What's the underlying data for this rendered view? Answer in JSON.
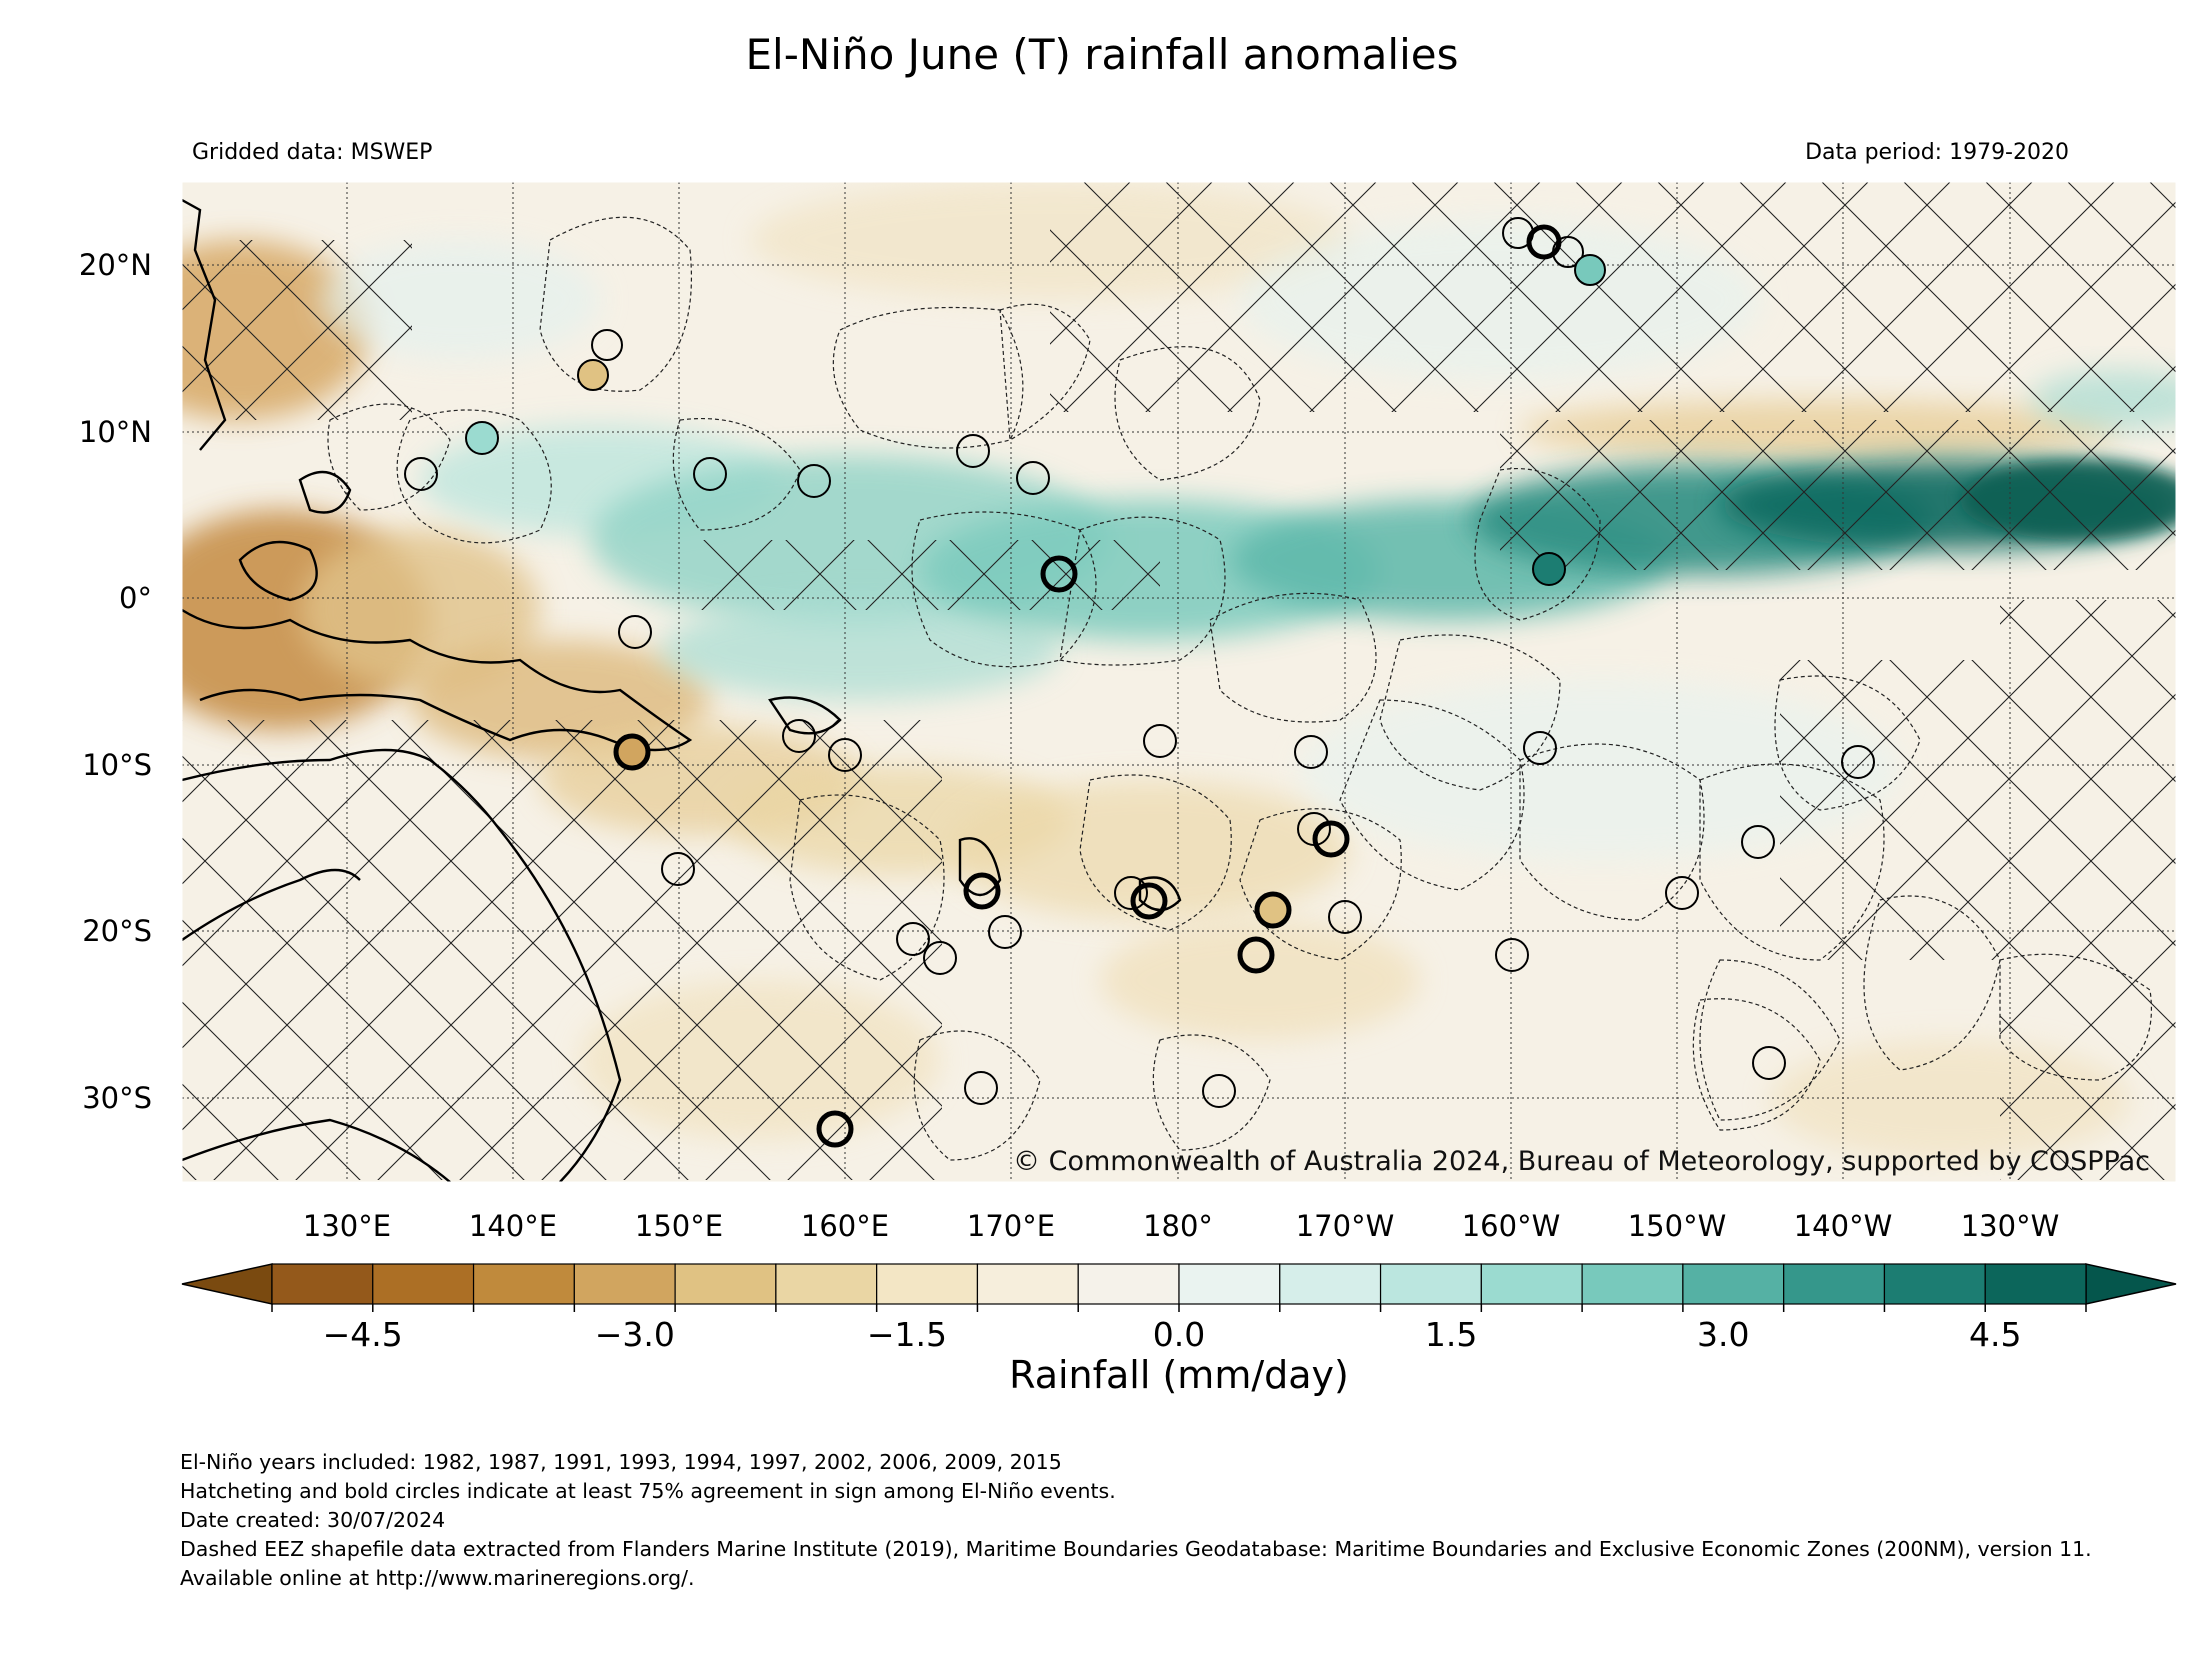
{
  "title": "El-Niño June (T) rainfall anomalies",
  "notes": {
    "left": "Gridded data: MSWEP",
    "right": "Data period: 1979-2020",
    "copyright": "© Commonwealth of Australia 2024, Bureau of Meteorology, supported by COSPPac"
  },
  "map": {
    "lon_labels": [
      "130°E",
      "140°E",
      "150°E",
      "160°E",
      "170°E",
      "180°",
      "170°W",
      "160°W",
      "150°W",
      "140°W",
      "130°W"
    ],
    "lat_labels": [
      "20°N",
      "10°N",
      "0°",
      "10°S",
      "20°S",
      "30°S"
    ],
    "lon_range": [
      120,
      240
    ],
    "lat_range": [
      -35,
      25
    ],
    "hatching": "Hatcheting and bold circles indicate at least 75% agreement in sign among El-Niño events."
  },
  "colorbar": {
    "label": "Rainfall (mm/day)",
    "tick_labels": [
      "−4.5",
      "−3.0",
      "−1.5",
      "0.0",
      "1.5",
      "3.0",
      "4.5"
    ],
    "ticks": [
      -4.5,
      -3.0,
      -1.5,
      0.0,
      1.5,
      3.0,
      4.5
    ],
    "range": [
      -5.25,
      5.25
    ],
    "extend": "both",
    "colors": [
      "#7a4a10",
      "#94591b",
      "#ac6f25",
      "#c08a3c",
      "#d1a55f",
      "#e0c283",
      "#ead6a4",
      "#f3e6c5",
      "#f6eedc",
      "#f5f2ea",
      "#eaf3f0",
      "#d6eeea",
      "#bbe6df",
      "#9bdbd0",
      "#78c9bc",
      "#55b1a4",
      "#35978b",
      "#1c7d72",
      "#0c665b",
      "#05564c"
    ]
  },
  "footer": {
    "years": "El-Niño years included: 1982, 1987, 1991, 1993, 1994, 1997, 2002, 2006, 2009, 2015",
    "hatching": "Hatcheting and bold circles indicate at least 75% agreement in sign among El-Niño events.",
    "date": "Date created: 30/07/2024",
    "source": "Dashed EEZ shapefile data extracted from Flanders Marine Institute (2019), Maritime Boundaries Geodatabase: Maritime Boundaries and Exclusive Economic Zones (200NM), version 11. Available online at http://www.marineregions.org/."
  }
}
